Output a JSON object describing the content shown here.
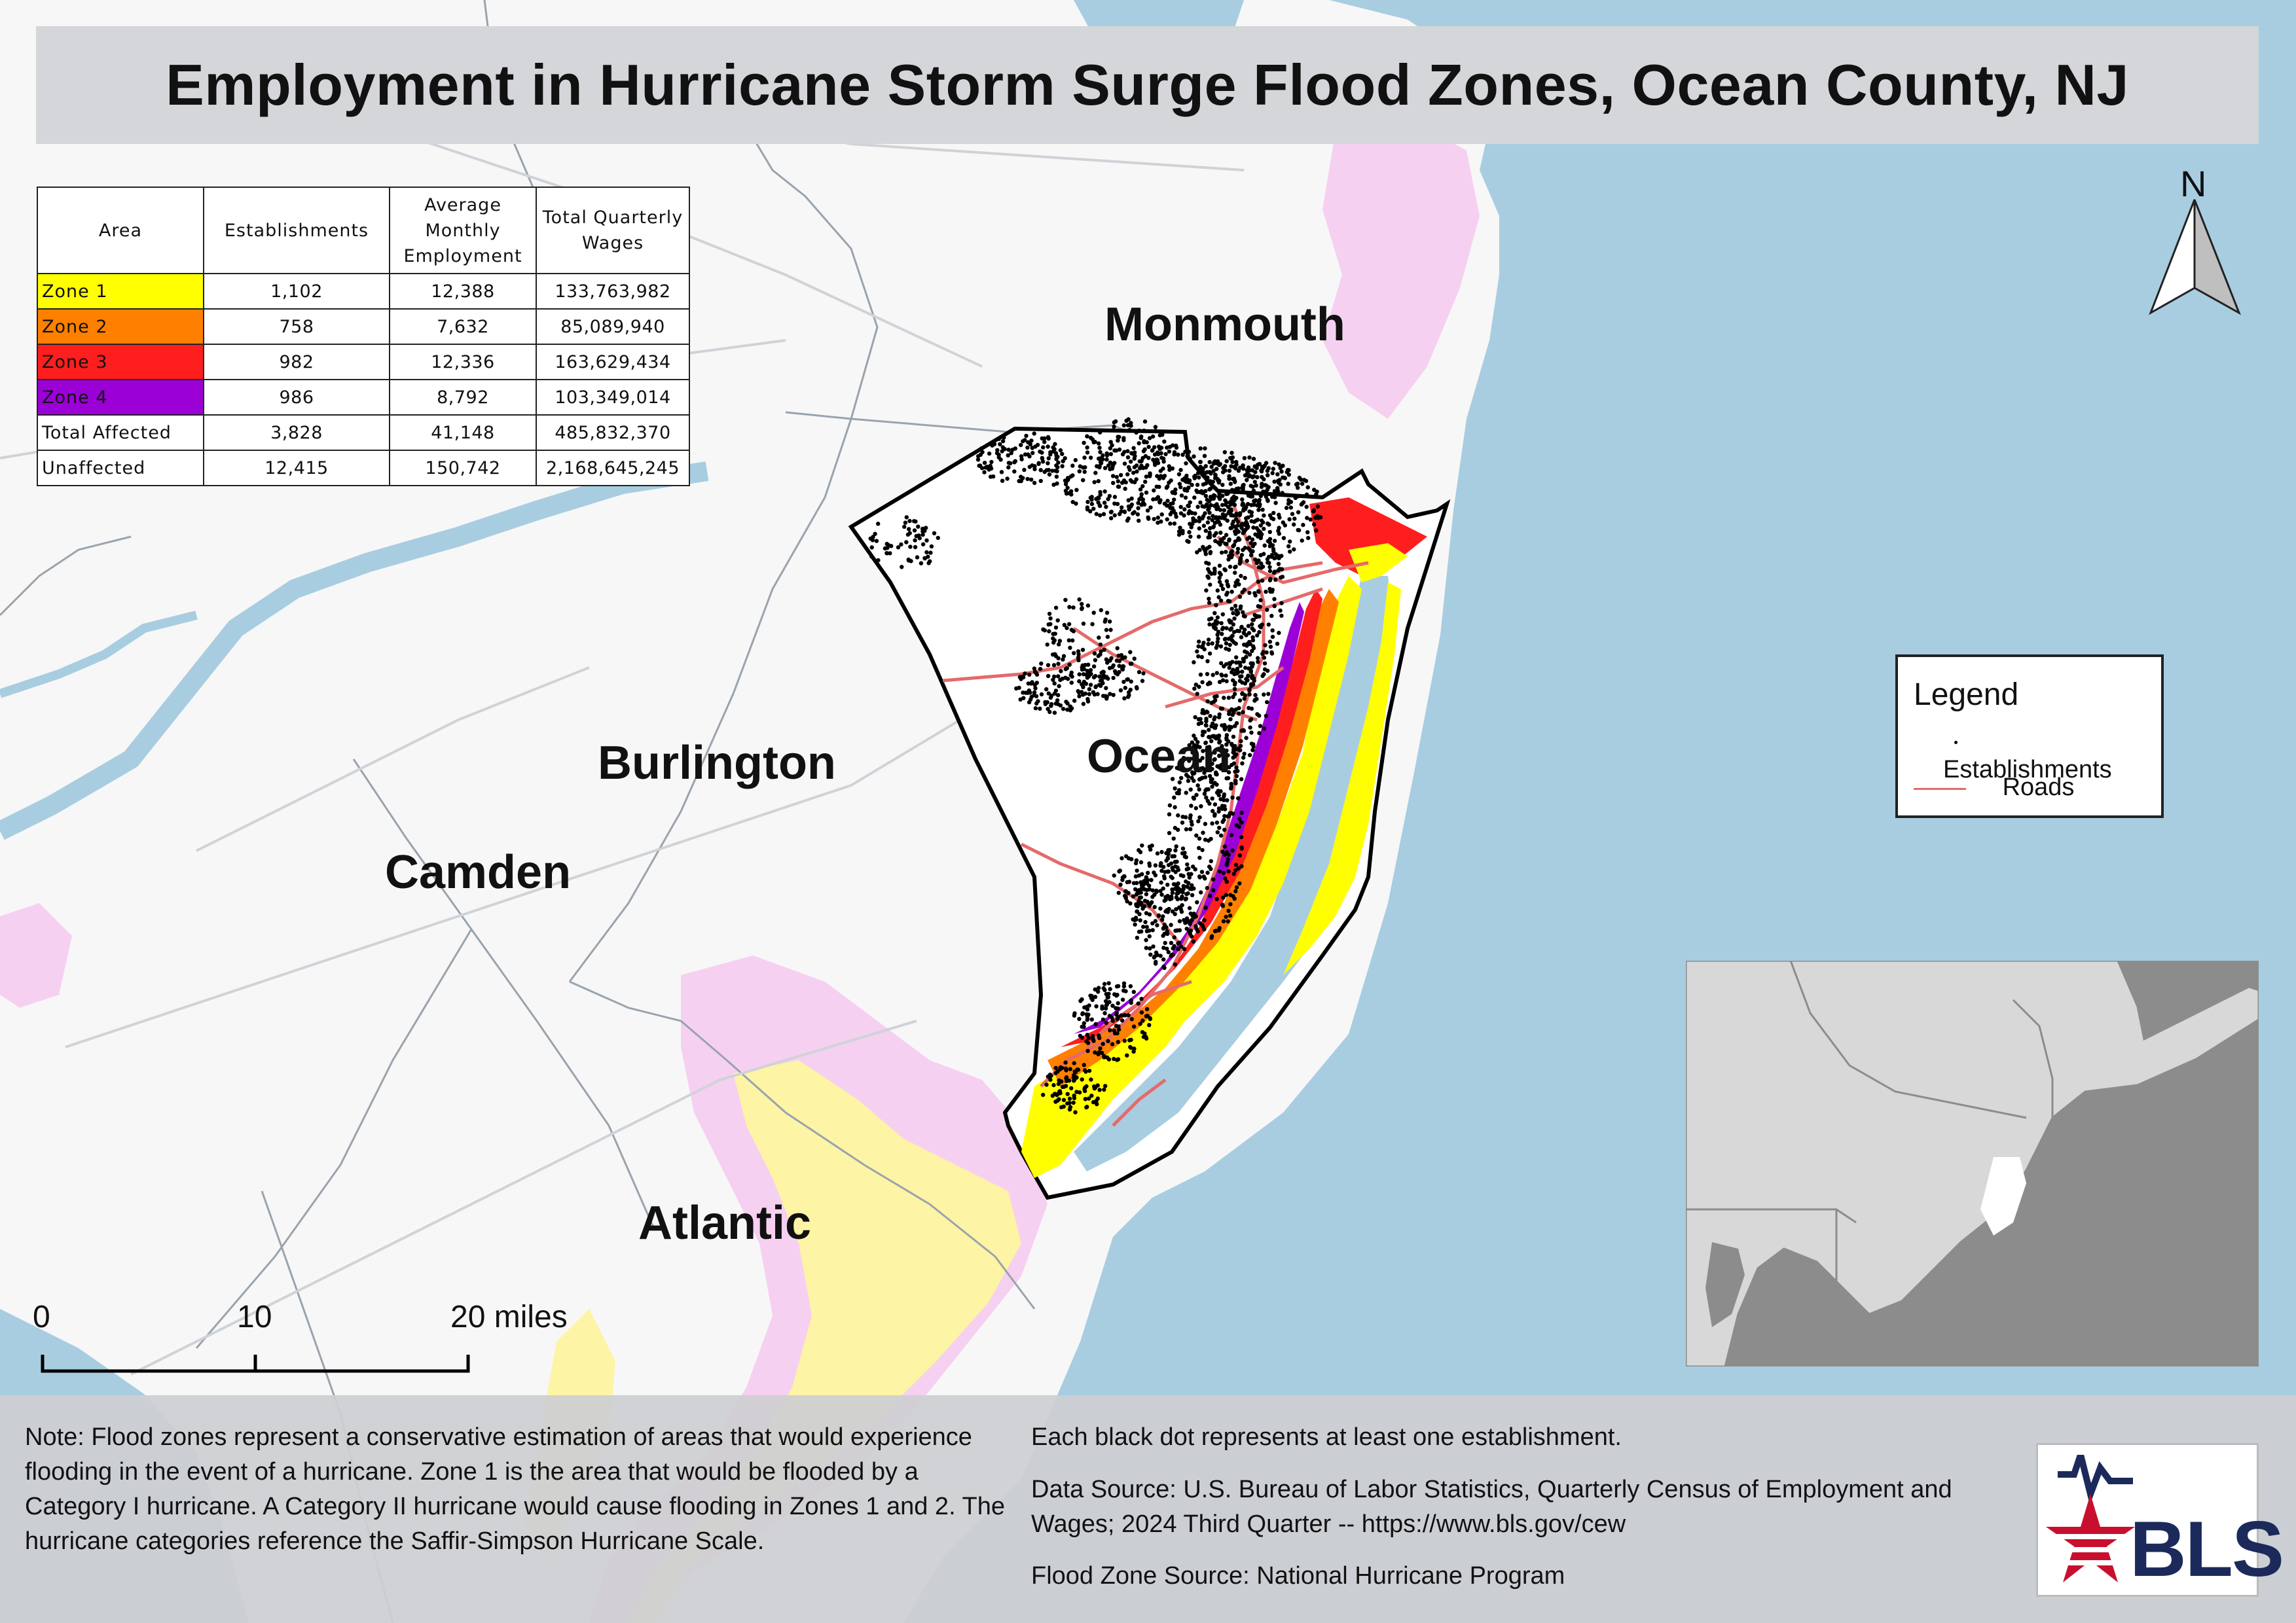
{
  "title": "Employment in Hurricane Storm Surge Flood Zones, Ocean County, NJ",
  "table": {
    "headers": [
      "Area",
      "Establishments",
      "Average Monthly Employment",
      "Total Quarterly Wages"
    ],
    "rows": [
      {
        "area": "Zone 1",
        "establishments": "1,102",
        "employment": "12,388",
        "wages": "133,763,982",
        "color": "#ffff00"
      },
      {
        "area": "Zone 2",
        "establishments": "758",
        "employment": "7,632",
        "wages": "85,089,940",
        "color": "#ff8000"
      },
      {
        "area": "Zone 3",
        "establishments": "982",
        "employment": "12,336",
        "wages": "163,629,434",
        "color": "#ff1e1e"
      },
      {
        "area": "Zone 4",
        "establishments": "986",
        "employment": "8,792",
        "wages": "103,349,014",
        "color": "#9b00d6"
      },
      {
        "area": "Total Affected",
        "establishments": "3,828",
        "employment": "41,148",
        "wages": "485,832,370",
        "color": "#ffffff"
      },
      {
        "area": "Unaffected",
        "establishments": "12,415",
        "employment": "150,742",
        "wages": "2,168,645,245",
        "color": "#ffffff"
      }
    ]
  },
  "counties": {
    "monmouth": "Monmouth",
    "ocean": "Ocean",
    "burlington": "Burlington",
    "camden": "Camden",
    "atlantic": "Atlantic"
  },
  "legend": {
    "title": "Legend",
    "establishments": "Establishments",
    "roads": "Roads"
  },
  "north_label": "N",
  "scale": {
    "zero": "0",
    "ten": "10",
    "twenty": "20 miles"
  },
  "note": "Note: Flood zones represent a conservative estimation of areas that would experience flooding in the event of a hurricane. Zone 1 is the area that would be flooded by a Category I hurricane. A Category II hurricane would cause flooding in Zones 1 and 2. The hurricane categories reference the Saffir-Simpson Hurricane Scale.",
  "dot_note": "Each black dot represents at least one establishment.",
  "data_source": "Data Source: U.S. Bureau of Labor Statistics, Quarterly Census of Employment and Wages; 2024 Third Quarter -- https://www.bls.gov/cew",
  "flood_source": "Flood Zone Source: National Hurricane Program",
  "logo_text": "BLS",
  "colors": {
    "water": "#a8cde1",
    "zone1": "#ffff00",
    "zone2": "#ff8000",
    "zone3": "#ff1e1e",
    "zone4": "#9b00d6",
    "roads": "#e46a6a"
  }
}
